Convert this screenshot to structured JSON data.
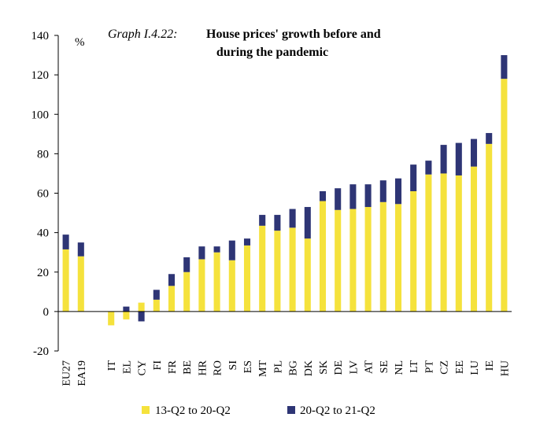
{
  "chart_data": {
    "type": "bar",
    "stacked": true,
    "title_prefix": "Graph I.4.22:",
    "title_line1": "House prices' growth before and",
    "title_line2": "during the pandemic",
    "unit_label": "%",
    "ylim": [
      -20,
      140
    ],
    "yticks": [
      "140",
      "120",
      "100",
      "80",
      "60",
      "40",
      "20",
      "0",
      "-20"
    ],
    "ytick_values": [
      140,
      120,
      100,
      80,
      60,
      40,
      20,
      0,
      -20
    ],
    "grid": false,
    "legend_position": "bottom",
    "categories": [
      "EU27",
      "EA19",
      "",
      "IT",
      "EL",
      "CY",
      "FI",
      "FR",
      "BE",
      "HR",
      "RO",
      "SI",
      "ES",
      "MT",
      "PL",
      "BG",
      "DK",
      "SK",
      "DE",
      "LV",
      "AT",
      "SE",
      "NL",
      "LT",
      "PT",
      "CZ",
      "EE",
      "LU",
      "IE",
      "HU"
    ],
    "series": [
      {
        "name": "13-Q2 to 20-Q2",
        "color": "#f5e23c",
        "values": [
          31.5,
          28,
          null,
          -7,
          -4,
          4.5,
          6,
          13,
          20,
          26.5,
          30,
          26,
          33.5,
          43.5,
          41,
          42.5,
          37,
          56,
          51.5,
          52,
          53,
          55.5,
          54.5,
          61,
          69.5,
          70,
          69,
          73.5,
          85,
          118
        ]
      },
      {
        "name": "20-Q2 to 21-Q2",
        "color": "#2e3575",
        "values": [
          7.5,
          7,
          null,
          0,
          2.5,
          -5,
          5,
          6,
          7.5,
          6.5,
          3,
          10,
          3.5,
          5.5,
          8,
          9.5,
          16,
          5,
          11,
          12.5,
          11.5,
          11,
          13,
          13.5,
          7,
          14.5,
          16.5,
          14,
          5.5,
          12
        ]
      }
    ]
  }
}
